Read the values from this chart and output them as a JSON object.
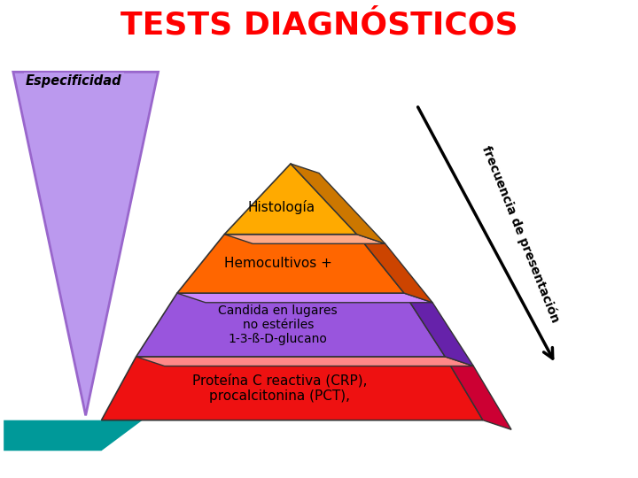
{
  "title": "TESTS DIAGNÓSTICOS",
  "title_color": "#FF0000",
  "title_fontsize": 26,
  "background_color": "#FFFFFF",
  "especificidad_label": "Especificidad",
  "frecuencia_label": "frecuencia de presentación",
  "layers": [
    {
      "label": "Proteína C reactiva (CRP),\nprocalcitonina (PCT),",
      "fill_color": "#EE1111",
      "side_color": "#CC0033",
      "top_color": "#FF8888",
      "text_color": "#000000",
      "fontsize": 11
    },
    {
      "label": "Candida en lugares\nno estériles\n1-3-ß-D-glucano",
      "fill_color": "#9955DD",
      "side_color": "#6622AA",
      "top_color": "#CC88FF",
      "text_color": "#000000",
      "fontsize": 10
    },
    {
      "label": "Hemocultivos +",
      "fill_color": "#FF6600",
      "side_color": "#CC4400",
      "top_color": "#FFAA88",
      "text_color": "#000000",
      "fontsize": 11
    },
    {
      "label": "Histología",
      "fill_color": "#FFAA00",
      "side_color": "#CC7700",
      "top_color": "#FFCC66",
      "text_color": "#000000",
      "fontsize": 11
    }
  ]
}
